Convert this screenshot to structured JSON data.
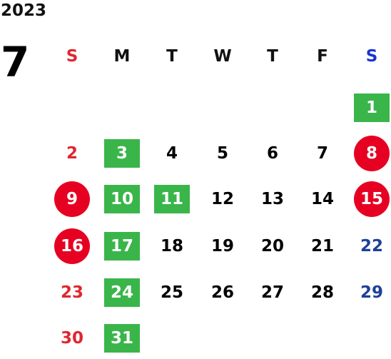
{
  "year": "2023",
  "month": "7",
  "weekdays": [
    "S",
    "M",
    "T",
    "W",
    "T",
    "F",
    "S"
  ],
  "colors": {
    "sunday": "#e0262e",
    "saturday_header": "#1a33d4",
    "saturday": "#1f3f99",
    "green": "#3ab54a",
    "red_circle": "#e60022"
  },
  "days": [
    {
      "d": "1",
      "col": 6,
      "row": 0,
      "style": "green"
    },
    {
      "d": "2",
      "col": 0,
      "row": 1,
      "style": "sun"
    },
    {
      "d": "3",
      "col": 1,
      "row": 1,
      "style": "green"
    },
    {
      "d": "4",
      "col": 2,
      "row": 1,
      "style": ""
    },
    {
      "d": "5",
      "col": 3,
      "row": 1,
      "style": ""
    },
    {
      "d": "6",
      "col": 4,
      "row": 1,
      "style": ""
    },
    {
      "d": "7",
      "col": 5,
      "row": 1,
      "style": ""
    },
    {
      "d": "8",
      "col": 6,
      "row": 1,
      "style": "circle"
    },
    {
      "d": "9",
      "col": 0,
      "row": 2,
      "style": "circle"
    },
    {
      "d": "10",
      "col": 1,
      "row": 2,
      "style": "green"
    },
    {
      "d": "11",
      "col": 2,
      "row": 2,
      "style": "green"
    },
    {
      "d": "12",
      "col": 3,
      "row": 2,
      "style": ""
    },
    {
      "d": "13",
      "col": 4,
      "row": 2,
      "style": ""
    },
    {
      "d": "14",
      "col": 5,
      "row": 2,
      "style": ""
    },
    {
      "d": "15",
      "col": 6,
      "row": 2,
      "style": "circle"
    },
    {
      "d": "16",
      "col": 0,
      "row": 3,
      "style": "circle"
    },
    {
      "d": "17",
      "col": 1,
      "row": 3,
      "style": "green"
    },
    {
      "d": "18",
      "col": 2,
      "row": 3,
      "style": ""
    },
    {
      "d": "19",
      "col": 3,
      "row": 3,
      "style": ""
    },
    {
      "d": "20",
      "col": 4,
      "row": 3,
      "style": ""
    },
    {
      "d": "21",
      "col": 5,
      "row": 3,
      "style": ""
    },
    {
      "d": "22",
      "col": 6,
      "row": 3,
      "style": "sat"
    },
    {
      "d": "23",
      "col": 0,
      "row": 4,
      "style": "sun"
    },
    {
      "d": "24",
      "col": 1,
      "row": 4,
      "style": "green"
    },
    {
      "d": "25",
      "col": 2,
      "row": 4,
      "style": ""
    },
    {
      "d": "26",
      "col": 3,
      "row": 4,
      "style": ""
    },
    {
      "d": "27",
      "col": 4,
      "row": 4,
      "style": ""
    },
    {
      "d": "28",
      "col": 5,
      "row": 4,
      "style": ""
    },
    {
      "d": "29",
      "col": 6,
      "row": 4,
      "style": "sat"
    },
    {
      "d": "30",
      "col": 0,
      "row": 5,
      "style": "sun"
    },
    {
      "d": "31",
      "col": 1,
      "row": 5,
      "style": "green"
    }
  ]
}
